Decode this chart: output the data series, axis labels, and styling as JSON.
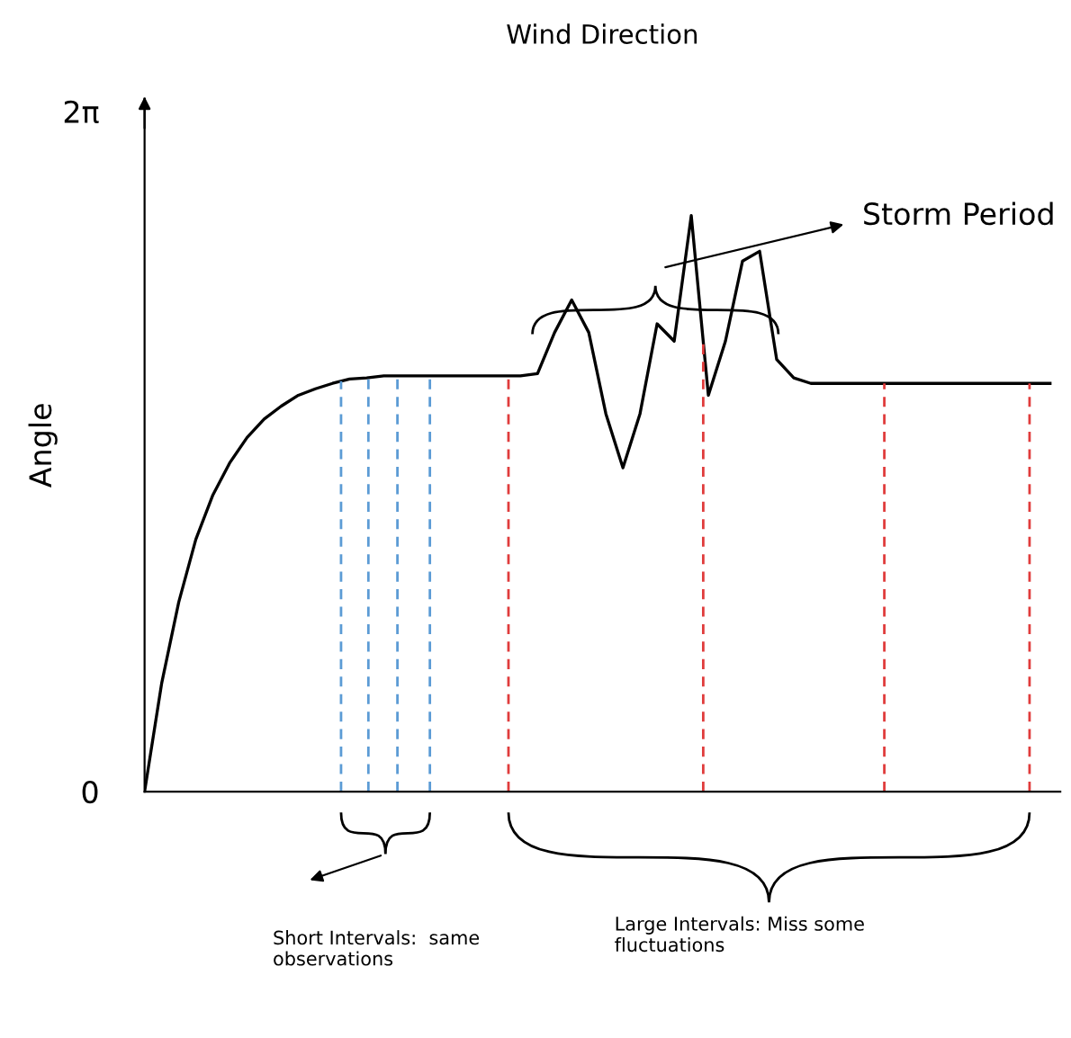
{
  "chart_data": {
    "type": "line",
    "title": "Wind Direction",
    "ylabel": "Angle",
    "categories": [
      null,
      null,
      null,
      null,
      null,
      null,
      null,
      null,
      null,
      null,
      null,
      null,
      null,
      null,
      null,
      null,
      null,
      null,
      null,
      null,
      null,
      null,
      null,
      null,
      null,
      null,
      null,
      null,
      null,
      null,
      null,
      null,
      null,
      null,
      null,
      null,
      null,
      null,
      null,
      null,
      null,
      null,
      null,
      null,
      null,
      null,
      null,
      null,
      null,
      null,
      null,
      null,
      null,
      null
    ],
    "series": [
      {
        "color": "#000000",
        "values": [
          0,
          1.0,
          1.75,
          2.33,
          2.74,
          3.04,
          3.27,
          3.44,
          3.56,
          3.66,
          3.72,
          3.77,
          3.81,
          3.82,
          3.84,
          3.84,
          3.84,
          3.84,
          3.84,
          3.84,
          3.84,
          3.84,
          3.84,
          3.86,
          4.24,
          4.54,
          4.24,
          3.49,
          2.99,
          3.49,
          4.32,
          4.16,
          5.32,
          3.66,
          4.16,
          4.9,
          4.99,
          3.99,
          3.82,
          3.77,
          3.77,
          3.77,
          3.77,
          3.77,
          3.77,
          3.77,
          3.77,
          3.77,
          3.77,
          3.77,
          3.77,
          3.77,
          3.77,
          3.77
        ]
      }
    ],
    "ylim": [
      0,
      6.4
    ],
    "yticks": [
      {
        "value": 0,
        "label": "0"
      },
      {
        "value": 6.283,
        "label": "2π"
      }
    ],
    "tick_labels": "y",
    "grid": false,
    "legend": false,
    "marker": "none",
    "line_style": "solid",
    "annotations": [
      "Storm Period",
      "Short Intervals:  same\nobservations",
      "Large Intervals: Miss some\nfluctuations"
    ]
  }
}
